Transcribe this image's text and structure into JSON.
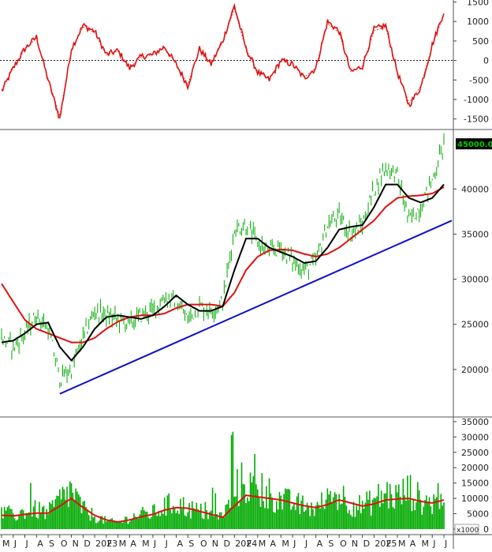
{
  "chart_data": [
    {
      "type": "line",
      "panel": "oscillator",
      "ylim": [
        -1750,
        1550
      ],
      "yticks": [
        1500,
        1000,
        500,
        0,
        -500,
        -1000,
        -1500
      ],
      "ytick_labels": [
        "1500",
        "1000",
        "500",
        "0",
        "-500",
        "-1000",
        "-1500"
      ],
      "zero_line": "dotted",
      "series": [
        {
          "role": "oscillator",
          "color": "#e01010",
          "x": [
            "2022-05",
            "2022-06",
            "2022-07",
            "2022-08",
            "2022-09",
            "2022-10",
            "2022-11",
            "2022-12",
            "2023-01",
            "2023-02",
            "2023-03",
            "2023-04",
            "2023-05",
            "2023-06",
            "2023-07",
            "2023-08",
            "2023-09",
            "2023-10",
            "2023-11",
            "2023-12",
            "2024-01",
            "2024-02",
            "2024-03",
            "2024-04",
            "2024-05",
            "2024-06",
            "2024-07",
            "2024-08",
            "2024-09",
            "2024-10",
            "2024-11",
            "2024-12",
            "2025-01",
            "2025-02",
            "2025-03",
            "2025-04",
            "2025-05",
            "2025-06",
            "2025-07"
          ],
          "values": [
            -800,
            -200,
            300,
            600,
            -500,
            -1500,
            300,
            900,
            750,
            150,
            250,
            -200,
            100,
            150,
            350,
            -100,
            -650,
            300,
            -100,
            500,
            1400,
            300,
            -300,
            -500,
            0,
            -100,
            -450,
            -200,
            1000,
            750,
            -300,
            -150,
            800,
            900,
            -300,
            -1150,
            -700,
            400,
            1250
          ]
        }
      ]
    },
    {
      "type": "candlestick",
      "panel": "price",
      "ylim": [
        15000,
        46500
      ],
      "yticks": [
        20000,
        25000,
        30000,
        35000,
        40000
      ],
      "ytick_labels": [
        "20000",
        "25000",
        "30000",
        "35000",
        "40000"
      ],
      "last_price_label": "45000.00",
      "last_price_label_color": "#00cc00",
      "candle_color": "#00aa00",
      "x": [
        "2022-05",
        "2022-06",
        "2022-07",
        "2022-08",
        "2022-09",
        "2022-10",
        "2022-11",
        "2022-12",
        "2023-01",
        "2023-02",
        "2023-03",
        "2023-04",
        "2023-05",
        "2023-06",
        "2023-07",
        "2023-08",
        "2023-09",
        "2023-10",
        "2023-11",
        "2023-12",
        "2024-01",
        "2024-02",
        "2024-03",
        "2024-04",
        "2024-05",
        "2024-06",
        "2024-07",
        "2024-08",
        "2024-09",
        "2024-10",
        "2024-11",
        "2024-12",
        "2025-01",
        "2025-02",
        "2025-03",
        "2025-04",
        "2025-05",
        "2025-06",
        "2025-07"
      ],
      "close": [
        23500,
        22500,
        24000,
        26000,
        24500,
        19000,
        20000,
        23500,
        26500,
        26000,
        25500,
        25000,
        26000,
        26500,
        28000,
        27500,
        25500,
        27000,
        26500,
        27500,
        35500,
        36000,
        34000,
        33000,
        33500,
        32000,
        31000,
        32000,
        36000,
        37000,
        35000,
        36000,
        40000,
        42500,
        41500,
        36500,
        38000,
        41000,
        45000
      ],
      "series": [
        {
          "role": "moving-average-short",
          "color": "#000000",
          "values": [
            23000,
            23200,
            24000,
            25000,
            25200,
            22500,
            21000,
            22500,
            24500,
            25800,
            26000,
            25800,
            25600,
            26000,
            27000,
            28200,
            27200,
            26500,
            26500,
            27000,
            31000,
            34500,
            34500,
            33500,
            33000,
            32500,
            31800,
            32000,
            33500,
            35500,
            35800,
            36000,
            38000,
            40500,
            40500,
            39000,
            38500,
            39000,
            40500
          ]
        },
        {
          "role": "moving-average-long",
          "color": "#e01010",
          "values": [
            29500,
            27500,
            25500,
            24500,
            24000,
            23500,
            23000,
            23000,
            23500,
            24500,
            25300,
            25800,
            26000,
            26000,
            26200,
            26800,
            27200,
            27200,
            27200,
            27000,
            28500,
            31000,
            32500,
            33200,
            33300,
            33200,
            32800,
            32500,
            32800,
            33500,
            34500,
            35500,
            36500,
            38000,
            39000,
            39200,
            39300,
            39500,
            40200
          ]
        },
        {
          "role": "trendline",
          "color": "#1010cc",
          "x": [
            "2022-10",
            "2025-07"
          ],
          "values": [
            17300,
            36500
          ]
        }
      ]
    },
    {
      "type": "bar",
      "panel": "volume",
      "unit_label": "x1000",
      "ylim": [
        0,
        36000
      ],
      "yticks": [
        35000,
        30000,
        25000,
        20000,
        15000,
        10000,
        5000,
        0
      ],
      "ytick_labels": [
        "35000",
        "30000",
        "25000",
        "20000",
        "15000",
        "10000",
        "5000",
        "0"
      ],
      "bar_color": "#00aa00",
      "x": [
        "2022-05",
        "2022-06",
        "2022-07",
        "2022-08",
        "2022-09",
        "2022-10",
        "2022-11",
        "2022-12",
        "2023-01",
        "2023-02",
        "2023-03",
        "2023-04",
        "2023-05",
        "2023-06",
        "2023-07",
        "2023-08",
        "2023-09",
        "2023-10",
        "2023-11",
        "2023-12",
        "2024-01",
        "2024-02",
        "2024-03",
        "2024-04",
        "2024-05",
        "2024-06",
        "2024-07",
        "2024-08",
        "2024-09",
        "2024-10",
        "2024-11",
        "2024-12",
        "2025-01",
        "2025-02",
        "2025-03",
        "2025-04",
        "2025-05",
        "2025-06",
        "2025-07"
      ],
      "values": [
        5000,
        4000,
        5500,
        6000,
        5000,
        9000,
        12000,
        6000,
        4000,
        2500,
        2000,
        3500,
        4500,
        5000,
        7000,
        8000,
        6500,
        5500,
        4500,
        3500,
        12000,
        15000,
        10000,
        11000,
        9000,
        8000,
        7000,
        6500,
        9000,
        11000,
        8000,
        7000,
        9000,
        11000,
        10000,
        12000,
        9000,
        8000,
        13000
      ],
      "series": [
        {
          "role": "volume-moving-average",
          "color": "#e01010",
          "values": [
            4500,
            4300,
            4800,
            5200,
            5200,
            7500,
            10000,
            7000,
            4500,
            3000,
            2300,
            3000,
            4000,
            4800,
            6200,
            7000,
            6800,
            5800,
            4800,
            3800,
            7500,
            11000,
            10500,
            10000,
            9500,
            8500,
            7600,
            7000,
            8000,
            9500,
            8500,
            7500,
            8200,
            9500,
            9800,
            10000,
            9000,
            8500,
            9500
          ]
        }
      ]
    }
  ],
  "x_axis": {
    "tick_labels": [
      "M",
      "J",
      "J",
      "A",
      "S",
      "O",
      "N",
      "D",
      "2023",
      "F",
      "M",
      "A",
      "M",
      "J",
      "J",
      "A",
      "S",
      "O",
      "N",
      "D",
      "2024",
      "F",
      "M",
      "A",
      "M",
      "J",
      "J",
      "A",
      "S",
      "O",
      "N",
      "D",
      "2025",
      "F",
      "M",
      "A",
      "M",
      "J",
      "J"
    ]
  }
}
